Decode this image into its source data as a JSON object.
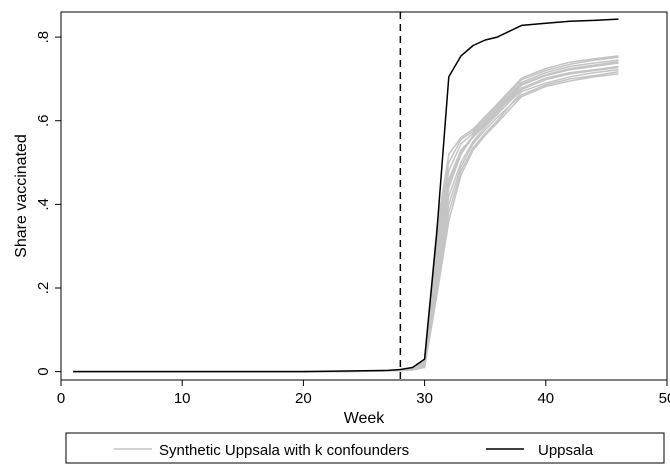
{
  "chart_data": {
    "type": "line",
    "xlabel": "Week",
    "ylabel": "Share vaccinated",
    "xlim": [
      0,
      50
    ],
    "ylim": [
      -0.02,
      0.86
    ],
    "x_ticks": [
      0,
      10,
      20,
      30,
      40,
      50
    ],
    "x_tick_labels": [
      "0",
      "10",
      "20",
      "30",
      "40",
      "50"
    ],
    "y_ticks": [
      0,
      0.2,
      0.4,
      0.6,
      0.8
    ],
    "y_tick_labels": [
      "0",
      ".2",
      ".4",
      ".6",
      ".8"
    ],
    "grid": false,
    "legend_position": "bottom",
    "vertical_reference_line": {
      "x": 28,
      "style": "dashed"
    },
    "colors": {
      "synthetic": "#c4c4c4",
      "uppsala": "#000000"
    },
    "legend": [
      {
        "label": "Synthetic Uppsala with k confounders",
        "color": "#c4c4c4"
      },
      {
        "label": "Uppsala",
        "color": "#000000"
      }
    ],
    "x": [
      1,
      20,
      25,
      27,
      28,
      29,
      30,
      31,
      32,
      33,
      34,
      35,
      36,
      38,
      40,
      42,
      44,
      46
    ],
    "series": [
      {
        "name": "Uppsala",
        "values": [
          0,
          0,
          0.002,
          0.003,
          0.005,
          0.01,
          0.03,
          0.33,
          0.705,
          0.755,
          0.78,
          0.793,
          0.8,
          0.828,
          0.833,
          0.838,
          0.84,
          0.843
        ]
      },
      {
        "name": "Synthetic Uppsala with k confounders",
        "group": "synthetic",
        "values": [
          0,
          0,
          0.001,
          0.002,
          0.003,
          0.005,
          0.02,
          0.26,
          0.44,
          0.52,
          0.562,
          0.592,
          0.622,
          0.678,
          0.702,
          0.715,
          0.722,
          0.73
        ]
      },
      {
        "name": "Synthetic Uppsala with k confounders",
        "group": "synthetic",
        "values": [
          0,
          0,
          0.001,
          0.002,
          0.003,
          0.005,
          0.015,
          0.22,
          0.4,
          0.49,
          0.545,
          0.578,
          0.608,
          0.662,
          0.686,
          0.7,
          0.708,
          0.717
        ]
      },
      {
        "name": "Synthetic Uppsala with k confounders",
        "group": "synthetic",
        "values": [
          0,
          0,
          0.001,
          0.002,
          0.003,
          0.004,
          0.012,
          0.2,
          0.38,
          0.48,
          0.535,
          0.57,
          0.6,
          0.67,
          0.69,
          0.705,
          0.715,
          0.722
        ]
      },
      {
        "name": "Synthetic Uppsala with k confounders",
        "group": "synthetic",
        "values": [
          0,
          0,
          0.001,
          0.002,
          0.003,
          0.006,
          0.022,
          0.28,
          0.46,
          0.53,
          0.56,
          0.59,
          0.62,
          0.685,
          0.708,
          0.722,
          0.73,
          0.738
        ]
      },
      {
        "name": "Synthetic Uppsala with k confounders",
        "group": "synthetic",
        "values": [
          0,
          0,
          0.001,
          0.002,
          0.004,
          0.007,
          0.025,
          0.3,
          0.48,
          0.545,
          0.57,
          0.6,
          0.63,
          0.692,
          0.715,
          0.73,
          0.738,
          0.745
        ]
      },
      {
        "name": "Synthetic Uppsala with k confounders",
        "group": "synthetic",
        "values": [
          0,
          0,
          0.001,
          0.002,
          0.004,
          0.008,
          0.028,
          0.32,
          0.5,
          0.555,
          0.575,
          0.605,
          0.635,
          0.698,
          0.72,
          0.735,
          0.745,
          0.752
        ]
      },
      {
        "name": "Synthetic Uppsala with k confounders",
        "group": "synthetic",
        "values": [
          0,
          0,
          0.001,
          0.002,
          0.003,
          0.005,
          0.018,
          0.24,
          0.42,
          0.5,
          0.55,
          0.585,
          0.615,
          0.675,
          0.698,
          0.712,
          0.72,
          0.727
        ]
      },
      {
        "name": "Synthetic Uppsala with k confounders",
        "group": "synthetic",
        "values": [
          0,
          0,
          0.001,
          0.002,
          0.004,
          0.008,
          0.03,
          0.34,
          0.52,
          0.56,
          0.58,
          0.61,
          0.64,
          0.702,
          0.725,
          0.74,
          0.748,
          0.755
        ]
      },
      {
        "name": "Synthetic Uppsala with k confounders",
        "group": "synthetic",
        "values": [
          0,
          0,
          0.001,
          0.002,
          0.003,
          0.004,
          0.01,
          0.18,
          0.36,
          0.47,
          0.53,
          0.565,
          0.595,
          0.658,
          0.682,
          0.695,
          0.705,
          0.712
        ]
      },
      {
        "name": "Synthetic Uppsala with k confounders",
        "group": "synthetic",
        "values": [
          0,
          0,
          0.001,
          0.002,
          0.003,
          0.006,
          0.02,
          0.27,
          0.45,
          0.525,
          0.565,
          0.595,
          0.625,
          0.688,
          0.71,
          0.725,
          0.733,
          0.741
        ]
      }
    ]
  }
}
